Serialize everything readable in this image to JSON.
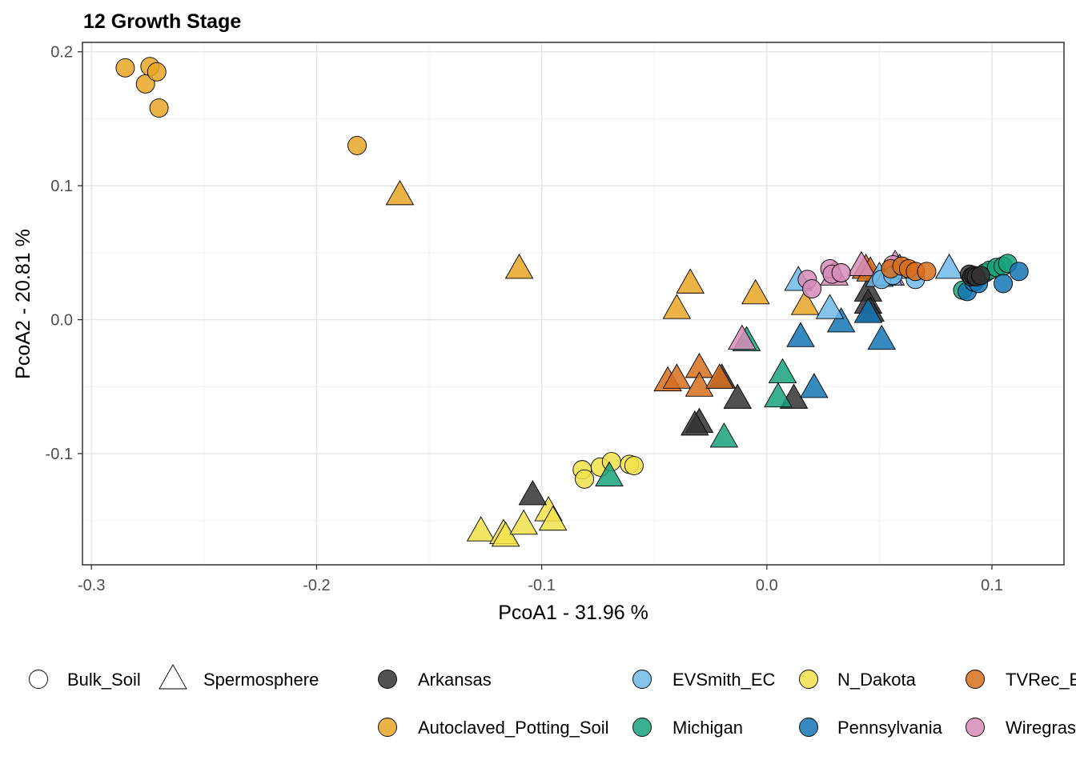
{
  "chart_data": {
    "type": "scatter",
    "title": "12 Growth Stage",
    "xlabel": "PcoA1 - 31.96 %",
    "ylabel": "PcoA2 - 20.81 %",
    "xlim": [
      -0.304,
      0.132
    ],
    "ylim": [
      -0.183,
      0.207
    ],
    "xticks": [
      -0.3,
      -0.2,
      -0.1,
      0.0,
      0.1
    ],
    "xtick_labels": [
      "-0.3",
      "-0.2",
      "-0.1",
      "0.0",
      "0.1"
    ],
    "yticks": [
      -0.1,
      0.0,
      0.1,
      0.2
    ],
    "ytick_labels": [
      "-0.1",
      "0.0",
      "0.1",
      "0.2"
    ],
    "grid": true,
    "legend_position": "bottom",
    "shape_legend": [
      {
        "name": "Bulk_Soil",
        "shape": "circle"
      },
      {
        "name": "Spermosphere",
        "shape": "triangle"
      }
    ],
    "color_legend": [
      {
        "name": "Arkansas",
        "color": "#333333"
      },
      {
        "name": "Autoclaved_Potting_Soil",
        "color": "#E8A524"
      },
      {
        "name": "EVSmith_EC",
        "color": "#6FB8E8"
      },
      {
        "name": "Michigan",
        "color": "#17A27A"
      },
      {
        "name": "N_Dakota",
        "color": "#F2E24A"
      },
      {
        "name": "Pennsylvania",
        "color": "#1476B4"
      },
      {
        "name": "TVRec_E",
        "color": "#D76E1D"
      },
      {
        "name": "Wiregras",
        "color": "#D78CB8"
      }
    ],
    "series": [
      {
        "name": "Autoclaved_Potting_Soil",
        "shape": "circle",
        "points": [
          [
            -0.285,
            0.188
          ],
          [
            -0.274,
            0.189
          ],
          [
            -0.276,
            0.176
          ],
          [
            -0.271,
            0.185
          ],
          [
            -0.27,
            0.158
          ],
          [
            -0.182,
            0.13
          ]
        ]
      },
      {
        "name": "Autoclaved_Potting_Soil",
        "shape": "triangle",
        "points": [
          [
            -0.163,
            0.093
          ],
          [
            -0.11,
            0.038
          ],
          [
            -0.034,
            0.027
          ],
          [
            -0.04,
            0.008
          ],
          [
            -0.005,
            0.019
          ],
          [
            0.017,
            0.011
          ]
        ]
      },
      {
        "name": "N_Dakota",
        "shape": "circle",
        "points": [
          [
            -0.082,
            -0.112
          ],
          [
            -0.081,
            -0.119
          ],
          [
            -0.074,
            -0.11
          ],
          [
            -0.069,
            -0.106
          ],
          [
            -0.061,
            -0.108
          ],
          [
            -0.059,
            -0.109
          ]
        ]
      },
      {
        "name": "N_Dakota",
        "shape": "triangle",
        "points": [
          [
            -0.127,
            -0.158
          ],
          [
            -0.117,
            -0.16
          ],
          [
            -0.116,
            -0.162
          ],
          [
            -0.108,
            -0.153
          ],
          [
            -0.097,
            -0.143
          ],
          [
            -0.095,
            -0.15
          ]
        ]
      },
      {
        "name": "Arkansas",
        "shape": "triangle",
        "points": [
          [
            -0.104,
            -0.131
          ],
          [
            -0.03,
            -0.077
          ],
          [
            -0.032,
            -0.079
          ],
          [
            -0.02,
            -0.044
          ],
          [
            -0.013,
            -0.059
          ],
          [
            0.012,
            -0.059
          ],
          [
            0.045,
            0.021
          ],
          [
            0.045,
            0.012
          ],
          [
            0.046,
            0.006
          ]
        ]
      },
      {
        "name": "Michigan",
        "shape": "triangle",
        "points": [
          [
            -0.07,
            -0.117
          ],
          [
            -0.019,
            -0.088
          ],
          [
            -0.009,
            -0.016
          ],
          [
            0.005,
            -0.058
          ],
          [
            0.007,
            -0.04
          ]
        ]
      },
      {
        "name": "TVRec_E",
        "shape": "triangle",
        "points": [
          [
            -0.044,
            -0.046
          ],
          [
            -0.04,
            -0.044
          ],
          [
            -0.03,
            -0.036
          ],
          [
            -0.03,
            -0.05
          ],
          [
            -0.021,
            -0.044
          ],
          [
            0.044,
            0.038
          ],
          [
            0.046,
            0.036
          ]
        ]
      },
      {
        "name": "Wiregras",
        "shape": "triangle",
        "points": [
          [
            -0.011,
            -0.015
          ],
          [
            0.03,
            0.033
          ],
          [
            0.042,
            0.04
          ],
          [
            0.057,
            0.041
          ],
          [
            0.055,
            0.033
          ]
        ]
      },
      {
        "name": "Pennsylvania",
        "shape": "triangle",
        "points": [
          [
            0.015,
            -0.013
          ],
          [
            0.021,
            -0.051
          ],
          [
            0.033,
            -0.002
          ],
          [
            0.045,
            0.005
          ],
          [
            0.051,
            -0.015
          ]
        ]
      },
      {
        "name": "EVSmith_EC",
        "shape": "triangle",
        "points": [
          [
            0.014,
            0.029
          ],
          [
            0.028,
            0.008
          ],
          [
            0.05,
            0.032
          ],
          [
            0.054,
            0.033
          ],
          [
            0.059,
            0.038
          ],
          [
            0.081,
            0.038
          ]
        ]
      },
      {
        "name": "Wiregras",
        "shape": "circle",
        "points": [
          [
            0.018,
            0.03
          ],
          [
            0.02,
            0.023
          ],
          [
            0.028,
            0.038
          ],
          [
            0.029,
            0.034
          ],
          [
            0.033,
            0.035
          ],
          [
            0.056,
            0.041
          ]
        ]
      },
      {
        "name": "EVSmith_EC",
        "shape": "circle",
        "points": [
          [
            0.051,
            0.03
          ],
          [
            0.056,
            0.033
          ],
          [
            0.066,
            0.03
          ]
        ]
      },
      {
        "name": "TVRec_E",
        "shape": "circle",
        "points": [
          [
            0.055,
            0.038
          ],
          [
            0.06,
            0.04
          ],
          [
            0.063,
            0.038
          ],
          [
            0.066,
            0.036
          ],
          [
            0.071,
            0.036
          ]
        ]
      },
      {
        "name": "Michigan",
        "shape": "circle",
        "points": [
          [
            0.094,
            0.032
          ],
          [
            0.097,
            0.035
          ],
          [
            0.099,
            0.037
          ],
          [
            0.102,
            0.039
          ],
          [
            0.105,
            0.04
          ],
          [
            0.107,
            0.042
          ],
          [
            0.087,
            0.022
          ]
        ]
      },
      {
        "name": "Pennsylvania",
        "shape": "circle",
        "points": [
          [
            0.089,
            0.021
          ],
          [
            0.092,
            0.028
          ],
          [
            0.094,
            0.027
          ],
          [
            0.105,
            0.027
          ],
          [
            0.112,
            0.036
          ]
        ]
      },
      {
        "name": "Arkansas",
        "shape": "circle",
        "points": [
          [
            0.09,
            0.034
          ],
          [
            0.091,
            0.032
          ],
          [
            0.092,
            0.033
          ],
          [
            0.093,
            0.032
          ],
          [
            0.095,
            0.033
          ]
        ]
      }
    ]
  }
}
